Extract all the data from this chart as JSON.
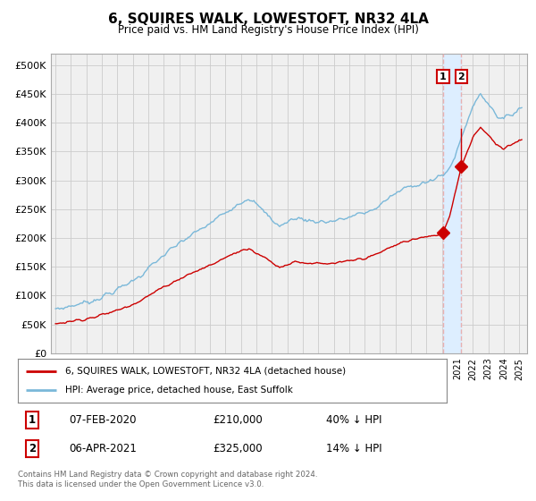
{
  "title": "6, SQUIRES WALK, LOWESTOFT, NR32 4LA",
  "subtitle": "Price paid vs. HM Land Registry's House Price Index (HPI)",
  "legend_line1": "6, SQUIRES WALK, LOWESTOFT, NR32 4LA (detached house)",
  "legend_line2": "HPI: Average price, detached house, East Suffolk",
  "annotation1_date": "07-FEB-2020",
  "annotation1_price": "£210,000",
  "annotation1_hpi": "40% ↓ HPI",
  "annotation1_year": 2020.08,
  "annotation1_value": 210000,
  "annotation2_date": "06-APR-2021",
  "annotation2_price": "£325,000",
  "annotation2_hpi": "14% ↓ HPI",
  "annotation2_year": 2021.25,
  "annotation2_value": 325000,
  "hpi_color": "#7ab8d9",
  "price_color": "#cc0000",
  "vline_color": "#e8b0b0",
  "highlight_color": "#ddeeff",
  "grid_color": "#cccccc",
  "background_color": "#f0f0f0",
  "ylim": [
    0,
    520000
  ],
  "xlim_start": 1994.7,
  "xlim_end": 2025.5,
  "footer": "Contains HM Land Registry data © Crown copyright and database right 2024.\nThis data is licensed under the Open Government Licence v3.0.",
  "yticks": [
    0,
    50000,
    100000,
    150000,
    200000,
    250000,
    300000,
    350000,
    400000,
    450000,
    500000
  ],
  "ytick_labels": [
    "£0",
    "£50K",
    "£100K",
    "£150K",
    "£200K",
    "£250K",
    "£300K",
    "£350K",
    "£400K",
    "£450K",
    "£500K"
  ]
}
